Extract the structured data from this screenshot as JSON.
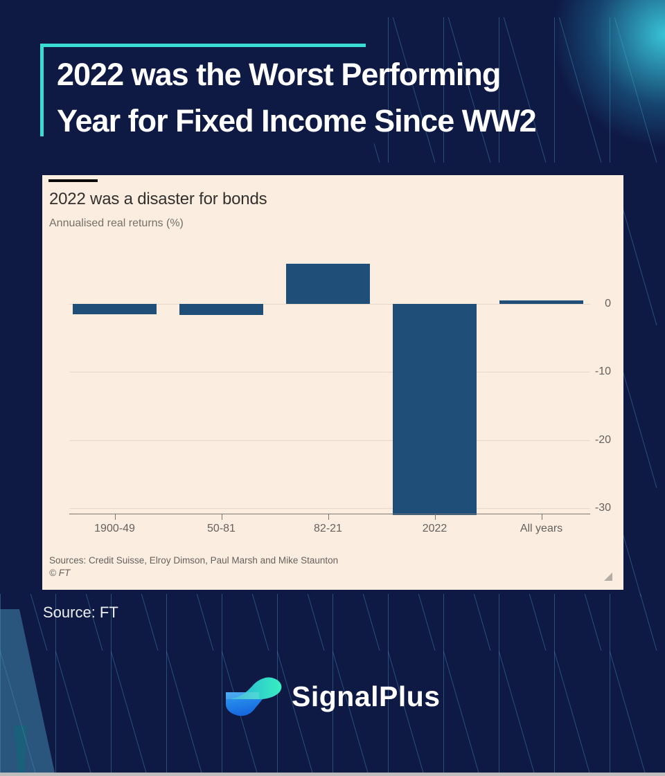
{
  "header": {
    "title_line1": "2022 was the Worst Performing",
    "title_line2": "Year for Fixed Income Since WW2"
  },
  "chart_data": {
    "type": "bar",
    "title": "2022 was a disaster for bonds",
    "subtitle": "Annualised real returns (%)",
    "categories": [
      "1900-49",
      "50-81",
      "82-21",
      "2022",
      "All years"
    ],
    "values": [
      -1.5,
      -1.6,
      5.9,
      -31,
      0.5
    ],
    "yticks": [
      0,
      -10,
      -20,
      -30
    ],
    "ylim": [
      -32,
      7
    ],
    "grid": true,
    "legend_position": "none",
    "bar_color": "#1f4e79",
    "plot_background": "#fbeee1",
    "sources_note": "Sources: Credit Suisse, Elroy Dimson, Paul Marsh and Mike Staunton",
    "copyright_note": "© FT"
  },
  "footer": {
    "source_label": "Source: FT",
    "brand_name": "SignalPlus"
  },
  "colors": {
    "background_navy": "#0e1944",
    "accent_teal": "#3bdcd4",
    "bar_blue": "#1f4e79",
    "card_background": "#fbeee1",
    "glow_cyan": "#40e1f0"
  }
}
